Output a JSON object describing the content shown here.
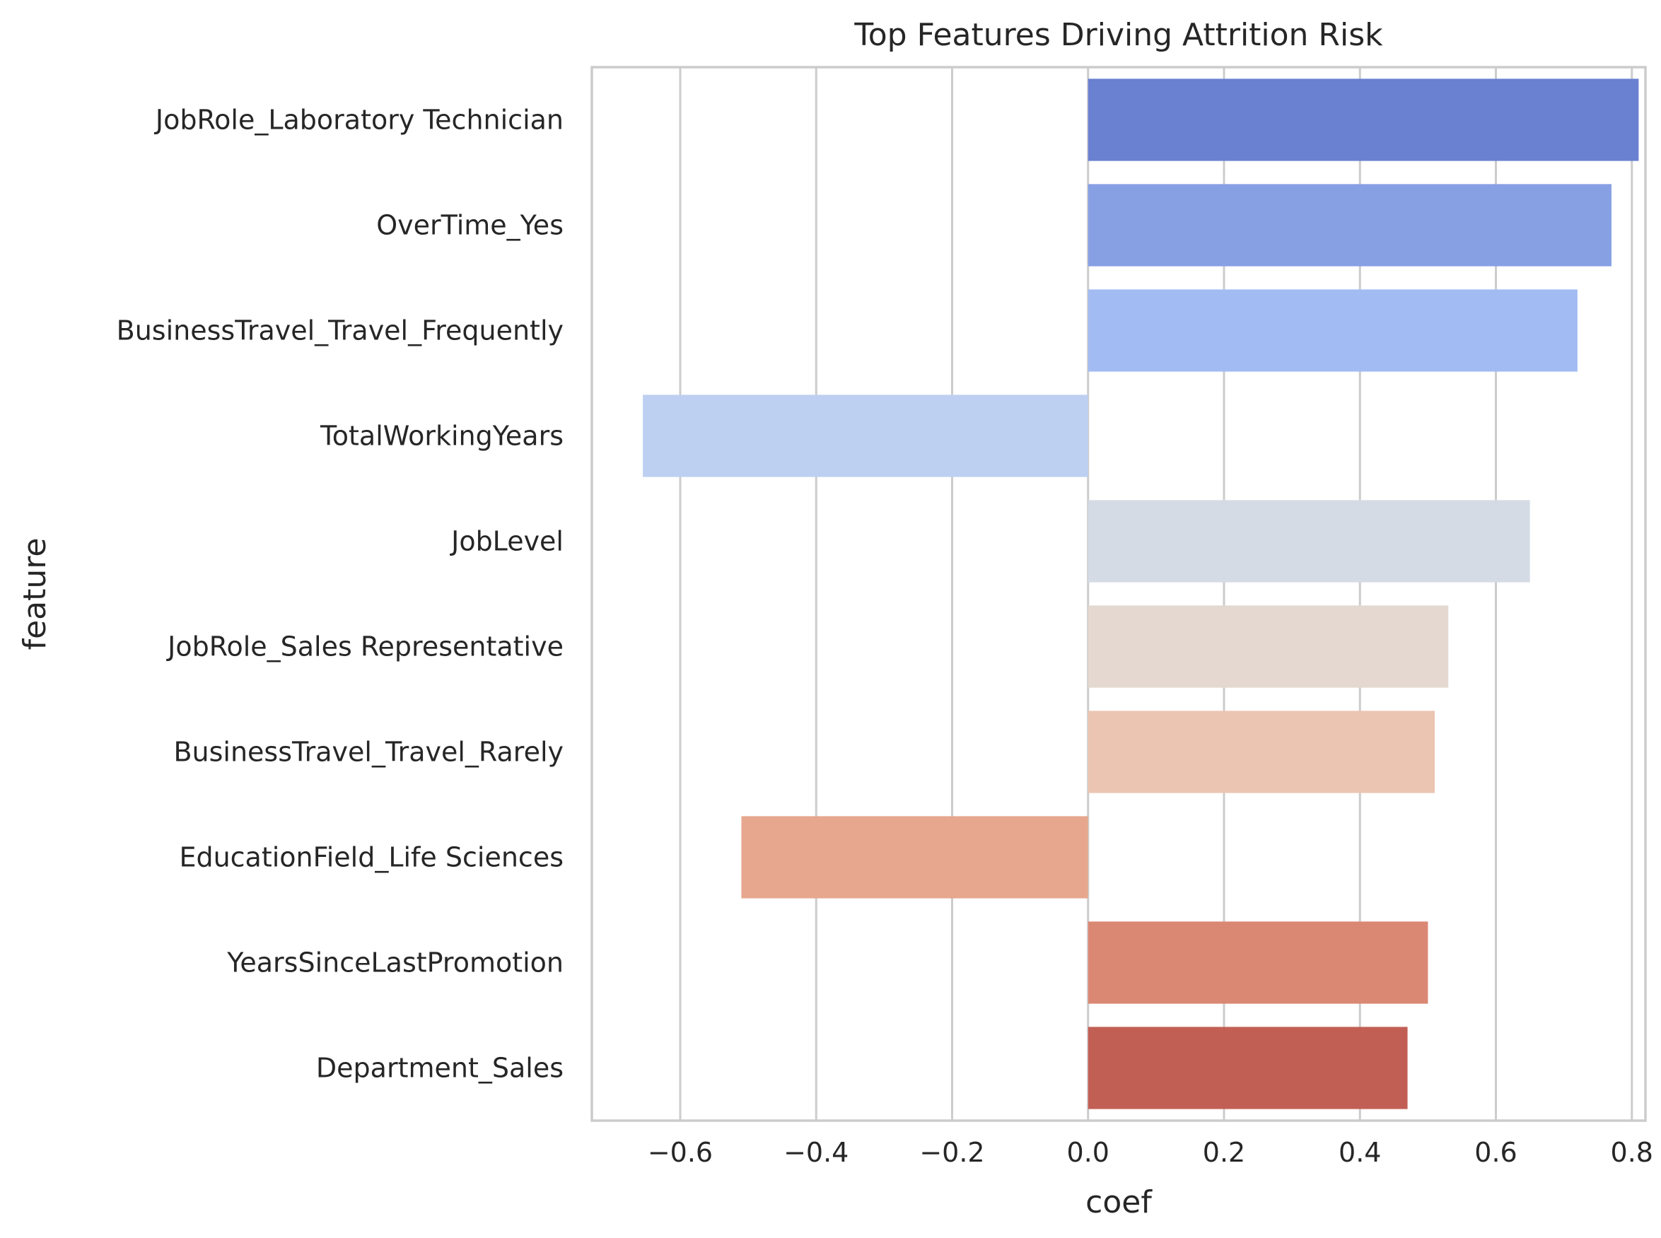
{
  "chart_data": {
    "type": "bar",
    "orientation": "horizontal",
    "title": "Top Features Driving Attrition Risk",
    "xlabel": "coef",
    "ylabel": "feature",
    "xlim": [
      -0.73,
      0.82
    ],
    "grid": true,
    "legend": "none",
    "xticks": [
      -0.6,
      -0.4,
      -0.2,
      0.0,
      0.2,
      0.4,
      0.6,
      0.8
    ],
    "xtick_labels": [
      "−0.6",
      "−0.4",
      "−0.2",
      "0.0",
      "0.2",
      "0.4",
      "0.6",
      "0.8"
    ],
    "categories": [
      "JobRole_Laboratory Technician",
      "OverTime_Yes",
      "BusinessTravel_Travel_Frequently",
      "TotalWorkingYears",
      "JobLevel",
      "JobRole_Sales Representative",
      "BusinessTravel_Travel_Rarely",
      "EducationField_Life Sciences",
      "YearsSinceLastPromotion",
      "Department_Sales"
    ],
    "values": [
      0.81,
      0.77,
      0.72,
      -0.655,
      0.65,
      0.53,
      0.51,
      -0.51,
      0.5,
      0.47
    ],
    "colors": [
      "#6a80d1",
      "#87a0e4",
      "#a2bbf2",
      "#bdd0f1",
      "#d5dbe5",
      "#e4d8d0",
      "#ecc5b2",
      "#e7a78e",
      "#da8874",
      "#c25f55"
    ]
  }
}
